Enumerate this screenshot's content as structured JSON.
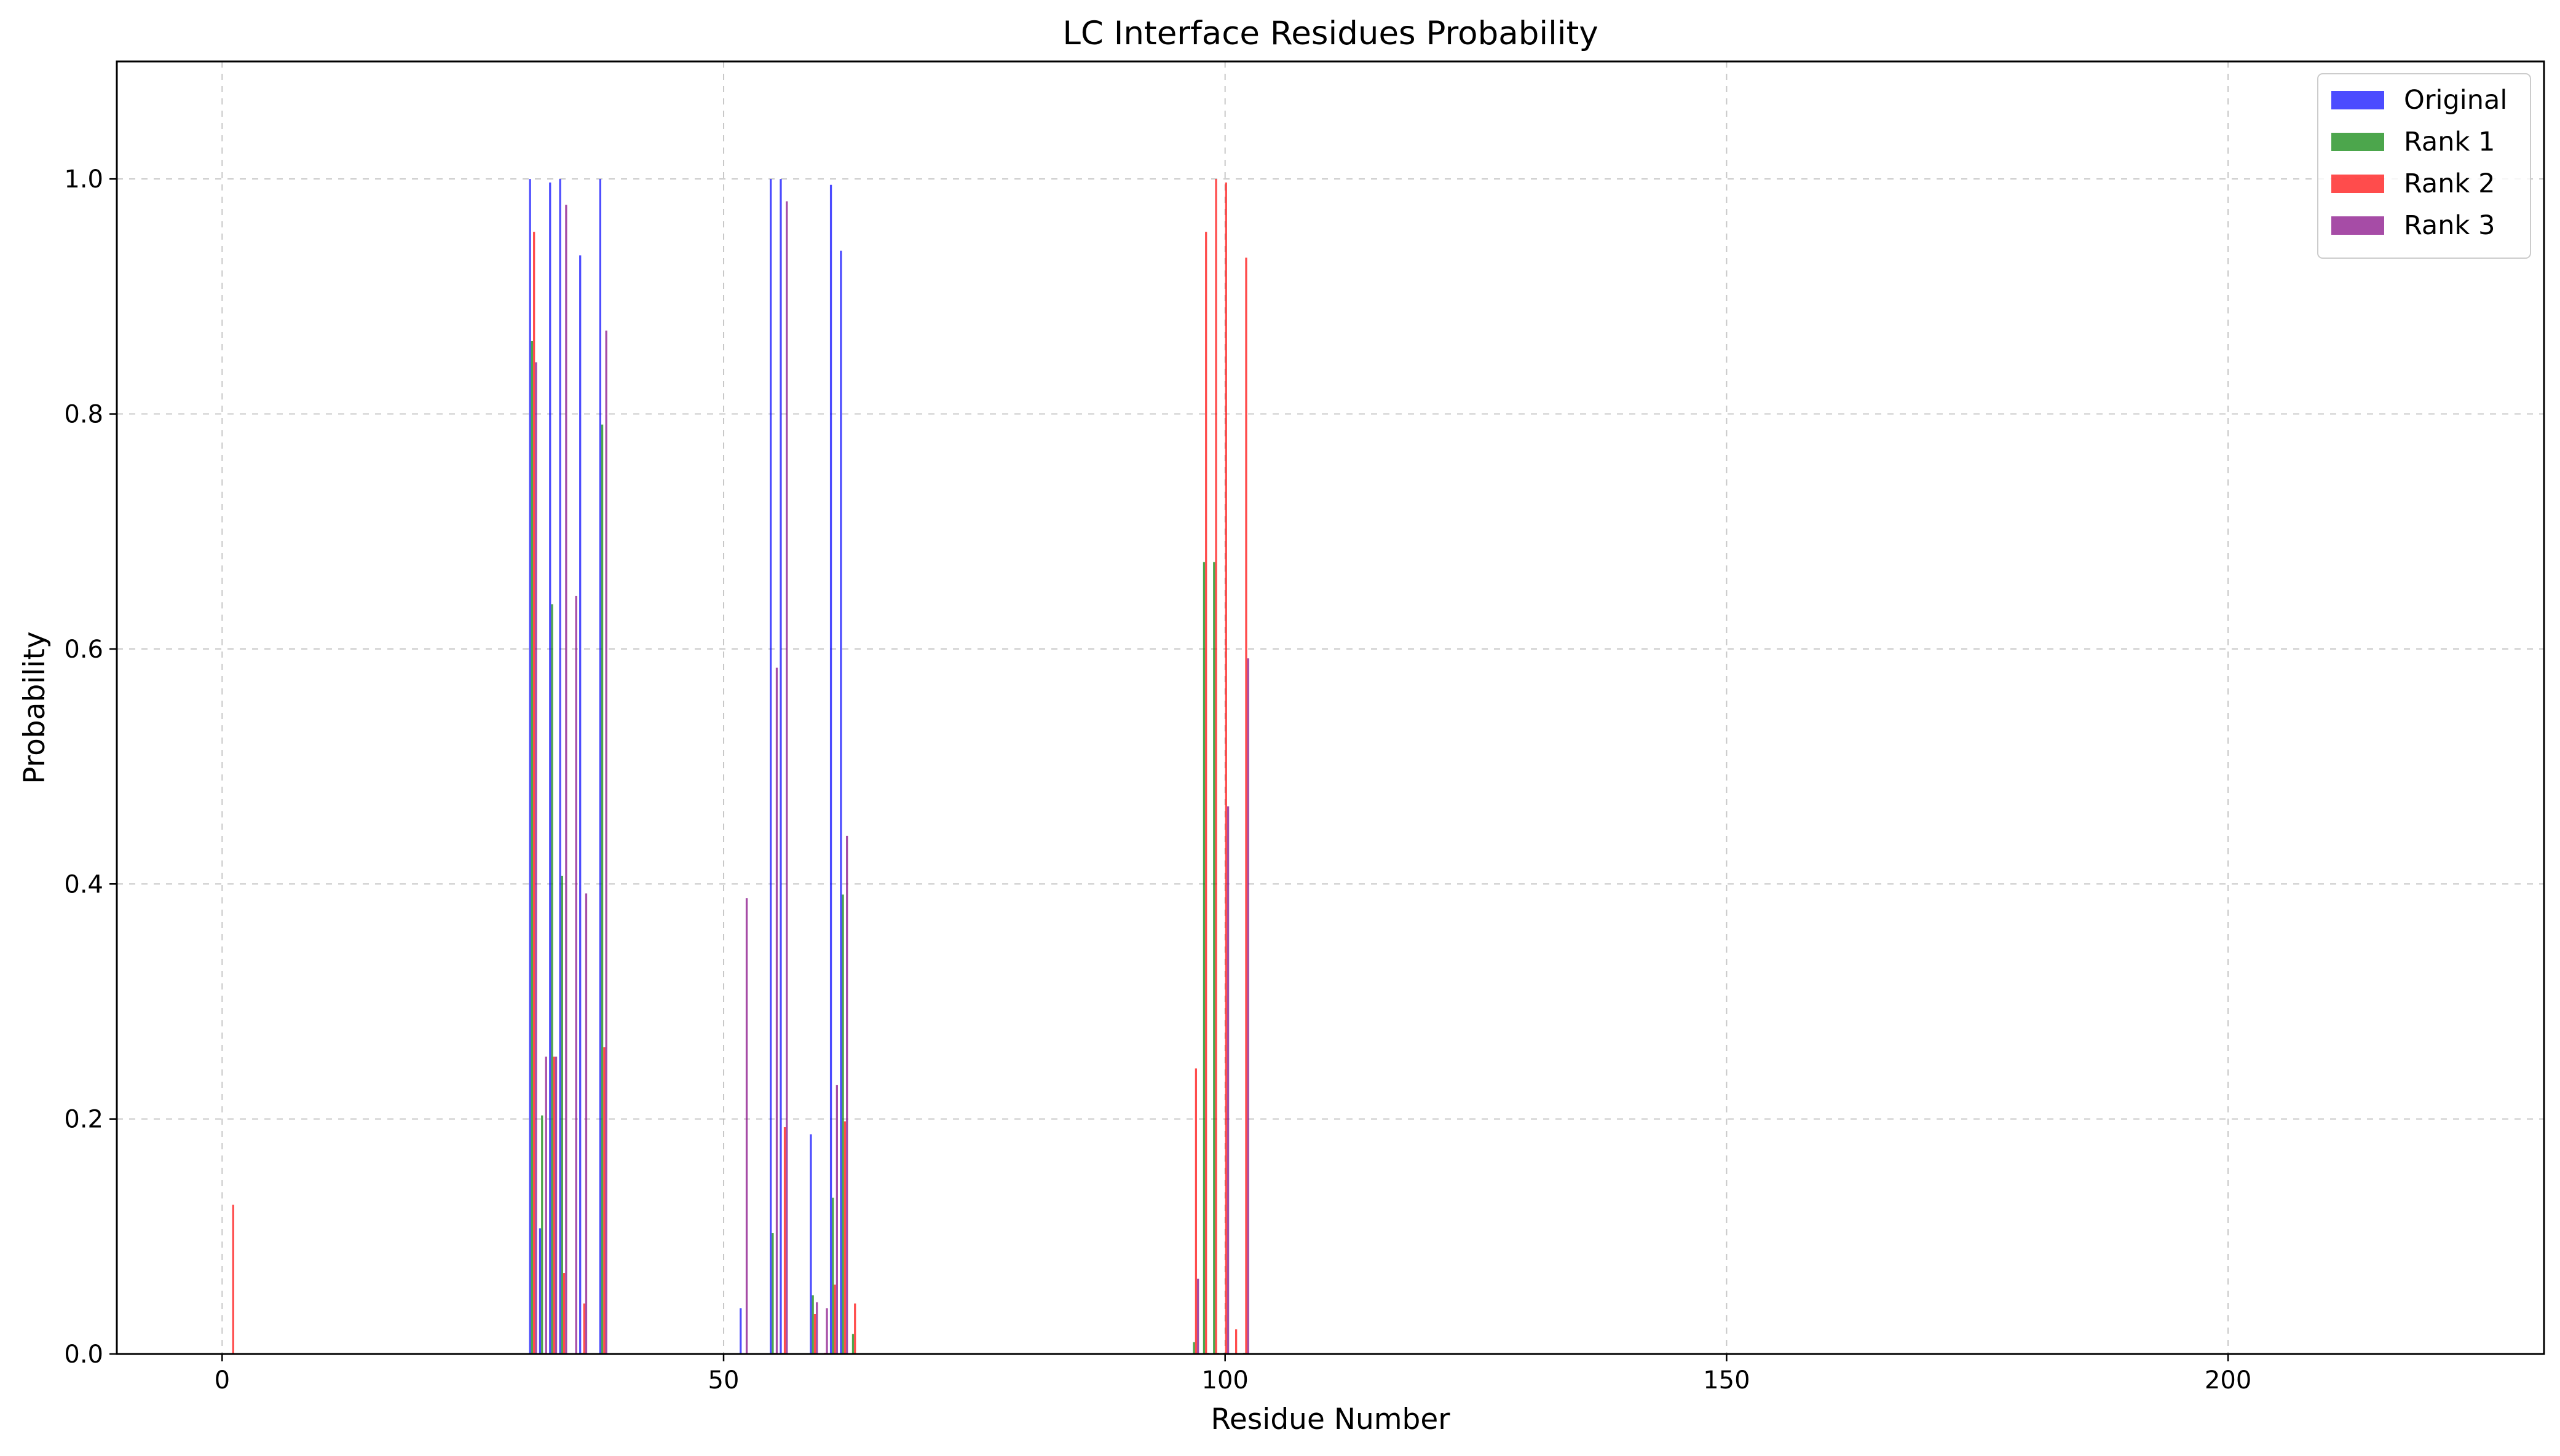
{
  "chart_data": {
    "type": "bar",
    "title": "LC Interface Residues Probability",
    "xlabel": "Residue Number",
    "ylabel": "Probability",
    "xlim": [
      -10.5,
      231.5
    ],
    "ylim": [
      0,
      1.1
    ],
    "xticks": [
      0,
      50,
      100,
      150,
      200
    ],
    "yticks": [
      0.0,
      0.2,
      0.4,
      0.6,
      0.8,
      1.0
    ],
    "xtick_labels": [
      "0",
      "50",
      "100",
      "150",
      "200"
    ],
    "ytick_labels": [
      "0.0",
      "0.2",
      "0.4",
      "0.6",
      "0.8",
      "1.0"
    ],
    "grid": true,
    "legend_position": "top-right",
    "bar_width": 0.2,
    "series": [
      {
        "name": "Original",
        "color": "#0000ff",
        "x": [
          31,
          32,
          33,
          34,
          36,
          38,
          52,
          55,
          56,
          59,
          61,
          62
        ],
        "values": [
          1.0,
          0.107,
          0.997,
          1.0,
          0.935,
          1.0,
          0.039,
          1.0,
          1.0,
          0.187,
          0.995,
          0.939
        ]
      },
      {
        "name": "Rank 1",
        "color": "#008000",
        "x": [
          31,
          32,
          33,
          34,
          36,
          38,
          55,
          56,
          59,
          61,
          62,
          63,
          97,
          98,
          99,
          100,
          102
        ],
        "values": [
          0.862,
          0.203,
          0.638,
          0.407,
          0.001,
          0.791,
          0.103,
          0.001,
          0.05,
          0.133,
          0.391,
          0.017,
          0.01,
          0.674,
          0.674,
          0.001,
          0.001
        ]
      },
      {
        "name": "Rank 2",
        "color": "#ff0000",
        "x": [
          1,
          31,
          32,
          33,
          34,
          36,
          38,
          55,
          56,
          59,
          60,
          61,
          62,
          63,
          97,
          98,
          99,
          100,
          101,
          102
        ],
        "values": [
          0.127,
          0.955,
          0.001,
          0.253,
          0.069,
          0.043,
          0.261,
          0.001,
          0.193,
          0.034,
          0.001,
          0.059,
          0.198,
          0.043,
          0.243,
          0.955,
          1.0,
          0.997,
          0.021,
          0.933
        ]
      },
      {
        "name": "Rank 3",
        "color": "#800080",
        "x": [
          31,
          32,
          33,
          34,
          35,
          36,
          38,
          52,
          55,
          56,
          59,
          60,
          61,
          62,
          97,
          98,
          99,
          100,
          102
        ],
        "values": [
          0.844,
          0.253,
          0.253,
          0.978,
          0.645,
          0.392,
          0.871,
          0.388,
          0.584,
          0.981,
          0.044,
          0.039,
          0.229,
          0.441,
          0.064,
          0.001,
          0.001,
          0.466,
          0.592
        ]
      }
    ]
  }
}
